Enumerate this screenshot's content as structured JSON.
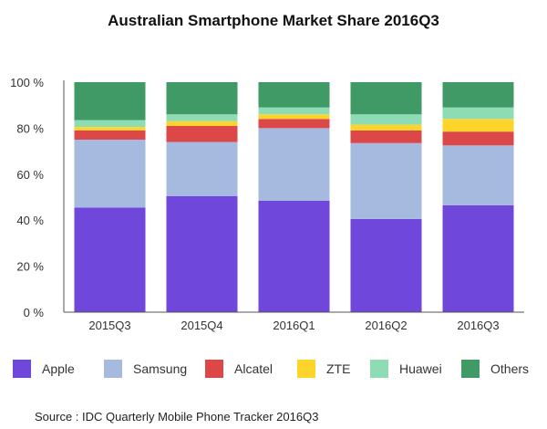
{
  "chart_data": {
    "type": "bar",
    "stacked": true,
    "title": "Australian Smartphone Market Share 2016Q3",
    "categories": [
      "2015Q3",
      "2015Q4",
      "2016Q1",
      "2016Q2",
      "2016Q3"
    ],
    "ylim": [
      0,
      100
    ],
    "yticks": [
      0,
      20,
      40,
      60,
      80,
      100
    ],
    "ytick_labels": [
      "0 %",
      "20 %",
      "40 %",
      "60 %",
      "80 %",
      "100 %"
    ],
    "grid": false,
    "legend_position": "bottom",
    "series": [
      {
        "name": "Apple",
        "color": "#6f47db",
        "values": [
          45.5,
          50.5,
          48.5,
          40.5,
          46.5
        ]
      },
      {
        "name": "Samsung",
        "color": "#a6b9df",
        "values": [
          29.5,
          23.5,
          31.5,
          33.0,
          26.0
        ]
      },
      {
        "name": "Alcatel",
        "color": "#dc4848",
        "values": [
          4.0,
          7.0,
          4.0,
          5.5,
          6.0
        ]
      },
      {
        "name": "ZTE",
        "color": "#ffd42a",
        "values": [
          1.5,
          2.0,
          2.0,
          2.5,
          5.5
        ]
      },
      {
        "name": "Huawei",
        "color": "#8edcb3",
        "values": [
          3.0,
          3.0,
          3.0,
          4.5,
          5.0
        ]
      },
      {
        "name": "Others",
        "color": "#3f9a65",
        "values": [
          16.5,
          14.0,
          11.0,
          14.0,
          11.0
        ]
      }
    ]
  },
  "source": "Source : IDC Quarterly Mobile Phone Tracker 2016Q3"
}
